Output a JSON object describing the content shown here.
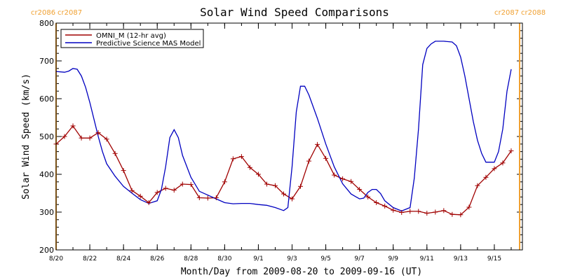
{
  "chart_data": {
    "type": "line",
    "title": "Solar Wind Speed Comparisons",
    "xlabel": "Month/Day from 2009-08-20 to 2009-09-16 (UT)",
    "ylabel": "Solar Wind Speed (km/s)",
    "xlim": [
      "2009-08-20",
      "2009-09-16"
    ],
    "ylim": [
      200,
      800
    ],
    "x_tick_labels": [
      "8/20",
      "8/22",
      "8/24",
      "8/26",
      "8/28",
      "8/30",
      "9/1",
      "9/3",
      "9/5",
      "9/7",
      "9/9",
      "9/11",
      "9/13",
      "9/15"
    ],
    "y_tick_labels": [
      "200",
      "300",
      "400",
      "500",
      "600",
      "700",
      "800"
    ],
    "carrington_markers": [
      {
        "label_left": "cr2086",
        "label_right": "cr2087",
        "date": "2009-08-20"
      },
      {
        "label_left": "cr2087",
        "label_right": "cr2088",
        "date": "2009-09-16T12:00"
      }
    ],
    "legend": {
      "position": "top-left"
    },
    "series": [
      {
        "name": "OMNI_M (12-hr avg)",
        "color": "#a00000",
        "markers": true,
        "points": [
          [
            "2009-08-20T00:00",
            480
          ],
          [
            "2009-08-20T12:00",
            500
          ],
          [
            "2009-08-21T00:00",
            528
          ],
          [
            "2009-08-21T12:00",
            496
          ],
          [
            "2009-08-22T00:00",
            496
          ],
          [
            "2009-08-22T12:00",
            510
          ],
          [
            "2009-08-23T00:00",
            493
          ],
          [
            "2009-08-23T12:00",
            455
          ],
          [
            "2009-08-24T00:00",
            410
          ],
          [
            "2009-08-24T12:00",
            357
          ],
          [
            "2009-08-25T00:00",
            342
          ],
          [
            "2009-08-25T12:00",
            325
          ],
          [
            "2009-08-26T00:00",
            352
          ],
          [
            "2009-08-26T12:00",
            363
          ],
          [
            "2009-08-27T00:00",
            358
          ],
          [
            "2009-08-27T12:00",
            374
          ],
          [
            "2009-08-28T00:00",
            373
          ],
          [
            "2009-08-28T12:00",
            338
          ],
          [
            "2009-08-29T00:00",
            337
          ],
          [
            "2009-08-29T12:00",
            338
          ],
          [
            "2009-08-30T00:00",
            380
          ],
          [
            "2009-08-30T12:00",
            441
          ],
          [
            "2009-08-31T00:00",
            447
          ],
          [
            "2009-08-31T12:00",
            418
          ],
          [
            "2009-09-01T00:00",
            400
          ],
          [
            "2009-09-01T12:00",
            374
          ],
          [
            "2009-09-02T00:00",
            370
          ],
          [
            "2009-09-02T12:00",
            348
          ],
          [
            "2009-09-03T00:00",
            335
          ],
          [
            "2009-09-03T12:00",
            368
          ],
          [
            "2009-09-04T00:00",
            435
          ],
          [
            "2009-09-04T12:00",
            479
          ],
          [
            "2009-09-05T00:00",
            442
          ],
          [
            "2009-09-05T12:00",
            398
          ],
          [
            "2009-09-06T00:00",
            388
          ],
          [
            "2009-09-06T12:00",
            381
          ],
          [
            "2009-09-07T00:00",
            360
          ],
          [
            "2009-09-07T12:00",
            340
          ],
          [
            "2009-09-08T00:00",
            325
          ],
          [
            "2009-09-08T12:00",
            316
          ],
          [
            "2009-09-09T00:00",
            305
          ],
          [
            "2009-09-09T12:00",
            299
          ],
          [
            "2009-09-10T00:00",
            302
          ],
          [
            "2009-09-10T12:00",
            302
          ],
          [
            "2009-09-11T00:00",
            297
          ],
          [
            "2009-09-11T12:00",
            300
          ],
          [
            "2009-09-12T00:00",
            304
          ],
          [
            "2009-09-12T12:00",
            294
          ],
          [
            "2009-09-13T00:00",
            293
          ],
          [
            "2009-09-13T12:00",
            313
          ],
          [
            "2009-09-14T00:00",
            370
          ],
          [
            "2009-09-14T12:00",
            392
          ],
          [
            "2009-09-15T00:00",
            415
          ],
          [
            "2009-09-15T12:00",
            430
          ],
          [
            "2009-09-16T00:00",
            462
          ]
        ]
      },
      {
        "name": "Predictive Science MAS Model",
        "color": "#0000c0",
        "markers": false,
        "points": [
          [
            "2009-08-20T00:00",
            672
          ],
          [
            "2009-08-20T12:00",
            670
          ],
          [
            "2009-08-20T18:00",
            673
          ],
          [
            "2009-08-21T00:00",
            680
          ],
          [
            "2009-08-21T06:00",
            678
          ],
          [
            "2009-08-21T12:00",
            660
          ],
          [
            "2009-08-21T18:00",
            630
          ],
          [
            "2009-08-22T00:00",
            590
          ],
          [
            "2009-08-22T06:00",
            545
          ],
          [
            "2009-08-22T12:00",
            500
          ],
          [
            "2009-08-22T18:00",
            460
          ],
          [
            "2009-08-23T00:00",
            428
          ],
          [
            "2009-08-23T12:00",
            395
          ],
          [
            "2009-08-24T00:00",
            368
          ],
          [
            "2009-08-24T12:00",
            350
          ],
          [
            "2009-08-25T00:00",
            333
          ],
          [
            "2009-08-25T12:00",
            323
          ],
          [
            "2009-08-26T00:00",
            330
          ],
          [
            "2009-08-26T06:00",
            360
          ],
          [
            "2009-08-26T12:00",
            420
          ],
          [
            "2009-08-26T18:00",
            497
          ],
          [
            "2009-08-27T00:00",
            518
          ],
          [
            "2009-08-27T06:00",
            497
          ],
          [
            "2009-08-27T12:00",
            450
          ],
          [
            "2009-08-28T00:00",
            392
          ],
          [
            "2009-08-28T12:00",
            355
          ],
          [
            "2009-08-29T00:00",
            345
          ],
          [
            "2009-08-29T12:00",
            335
          ],
          [
            "2009-08-30T00:00",
            325
          ],
          [
            "2009-08-30T12:00",
            322
          ],
          [
            "2009-08-31T00:00",
            323
          ],
          [
            "2009-08-31T12:00",
            323
          ],
          [
            "2009-09-01T00:00",
            320
          ],
          [
            "2009-09-01T12:00",
            318
          ],
          [
            "2009-09-02T00:00",
            312
          ],
          [
            "2009-09-02T12:00",
            304
          ],
          [
            "2009-09-02T18:00",
            312
          ],
          [
            "2009-09-03T00:00",
            420
          ],
          [
            "2009-09-03T06:00",
            565
          ],
          [
            "2009-09-03T12:00",
            633
          ],
          [
            "2009-09-03T18:00",
            633
          ],
          [
            "2009-09-04T00:00",
            610
          ],
          [
            "2009-09-04T12:00",
            548
          ],
          [
            "2009-09-05T00:00",
            480
          ],
          [
            "2009-09-05T12:00",
            420
          ],
          [
            "2009-09-06T00:00",
            375
          ],
          [
            "2009-09-06T12:00",
            348
          ],
          [
            "2009-09-07T00:00",
            335
          ],
          [
            "2009-09-07T06:00",
            337
          ],
          [
            "2009-09-07T12:00",
            352
          ],
          [
            "2009-09-07T18:00",
            360
          ],
          [
            "2009-09-08T00:00",
            360
          ],
          [
            "2009-09-08T06:00",
            349
          ],
          [
            "2009-09-08T12:00",
            330
          ],
          [
            "2009-09-09T00:00",
            312
          ],
          [
            "2009-09-09T12:00",
            303
          ],
          [
            "2009-09-10T00:00",
            312
          ],
          [
            "2009-09-10T06:00",
            390
          ],
          [
            "2009-09-10T12:00",
            520
          ],
          [
            "2009-09-10T18:00",
            690
          ],
          [
            "2009-09-11T00:00",
            733
          ],
          [
            "2009-09-11T06:00",
            745
          ],
          [
            "2009-09-11T12:00",
            752
          ],
          [
            "2009-09-12T00:00",
            752
          ],
          [
            "2009-09-12T12:00",
            750
          ],
          [
            "2009-09-12T18:00",
            740
          ],
          [
            "2009-09-13T00:00",
            710
          ],
          [
            "2009-09-13T06:00",
            660
          ],
          [
            "2009-09-13T12:00",
            600
          ],
          [
            "2009-09-13T18:00",
            540
          ],
          [
            "2009-09-14T00:00",
            490
          ],
          [
            "2009-09-14T06:00",
            455
          ],
          [
            "2009-09-14T12:00",
            432
          ],
          [
            "2009-09-15T00:00",
            432
          ],
          [
            "2009-09-15T06:00",
            460
          ],
          [
            "2009-09-15T12:00",
            520
          ],
          [
            "2009-09-15T18:00",
            620
          ],
          [
            "2009-09-16T00:00",
            678
          ]
        ]
      }
    ]
  }
}
